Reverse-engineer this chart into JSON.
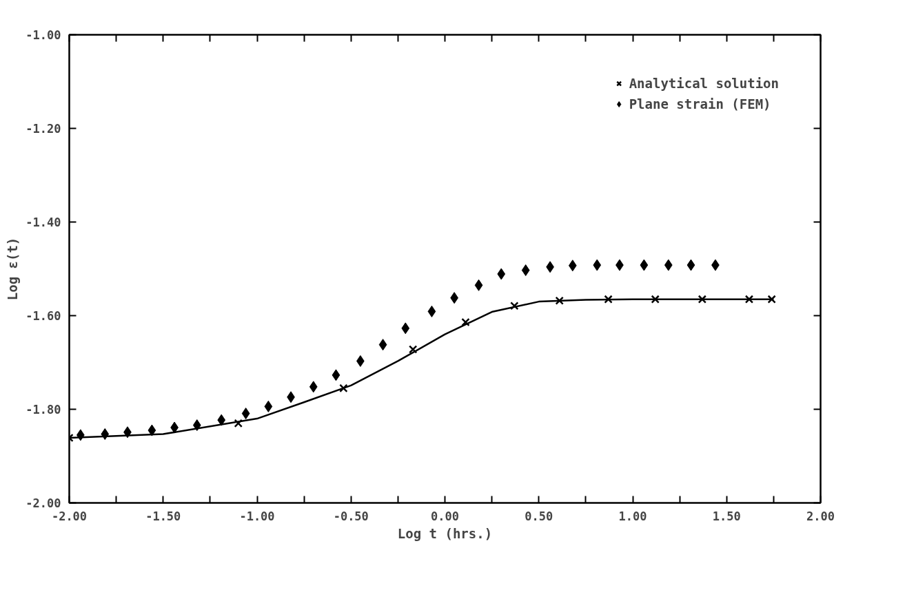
{
  "chart_data": {
    "type": "scatter",
    "xlabel": "Log t (hrs.)",
    "ylabel": "Log ε(t)",
    "xlim": [
      -2,
      2
    ],
    "ylim": [
      -2,
      -1
    ],
    "xticks": [
      {
        "value": -2,
        "label": "-2.00"
      },
      {
        "value": -1.75,
        "label": null
      },
      {
        "value": -1.5,
        "label": "-1.50"
      },
      {
        "value": -1.25,
        "label": null
      },
      {
        "value": -1,
        "label": "-1.00"
      },
      {
        "value": -0.75,
        "label": null
      },
      {
        "value": -0.5,
        "label": "-0.50"
      },
      {
        "value": -0.25,
        "label": null
      },
      {
        "value": 0,
        "label": "0.00"
      },
      {
        "value": 0.25,
        "label": null
      },
      {
        "value": 0.5,
        "label": "0.50"
      },
      {
        "value": 0.75,
        "label": null
      },
      {
        "value": 1,
        "label": "1.00"
      },
      {
        "value": 1.25,
        "label": null
      },
      {
        "value": 1.5,
        "label": "1.50"
      },
      {
        "value": 1.75,
        "label": null
      },
      {
        "value": 2,
        "label": "2.00"
      }
    ],
    "yticks": [
      {
        "value": -2,
        "label": "-2.00"
      },
      {
        "value": -1.8,
        "label": "-1.80"
      },
      {
        "value": -1.6,
        "label": "-1.60"
      },
      {
        "value": -1.4,
        "label": "-1.40"
      },
      {
        "value": -1.2,
        "label": "-1.20"
      },
      {
        "value": -1,
        "label": "-1.00"
      }
    ],
    "grid": false,
    "legend": "top right",
    "series": [
      {
        "name": "Analytical solution",
        "color": "#000000",
        "marker": "cross",
        "x": [
          -2.0,
          -1.1,
          -0.54,
          -0.17,
          0.11,
          0.37,
          0.61,
          0.87,
          1.12,
          1.37,
          1.62,
          1.74
        ],
        "values": [
          -1.861,
          -1.83,
          -1.755,
          -1.672,
          -1.614,
          -1.579,
          -1.568,
          -1.565,
          -1.565,
          -1.565,
          -1.565,
          -1.565
        ]
      },
      {
        "name": "Plane strain (FEM)",
        "color": "#000000",
        "marker": "diamond",
        "x": [
          -1.94,
          -1.81,
          -1.69,
          -1.56,
          -1.44,
          -1.32,
          -1.19,
          -1.06,
          -0.94,
          -0.82,
          -0.7,
          -0.58,
          -0.45,
          -0.33,
          -0.21,
          -0.07,
          0.05,
          0.18,
          0.3,
          0.43,
          0.56,
          0.68,
          0.81,
          0.93,
          1.06,
          1.19,
          1.31,
          1.44
        ],
        "values": [
          -1.855,
          -1.853,
          -1.849,
          -1.845,
          -1.839,
          -1.834,
          -1.823,
          -1.809,
          -1.794,
          -1.774,
          -1.752,
          -1.727,
          -1.697,
          -1.662,
          -1.627,
          -1.591,
          -1.562,
          -1.535,
          -1.511,
          -1.503,
          -1.496,
          -1.493,
          -1.492,
          -1.492,
          -1.492,
          -1.492,
          -1.492,
          -1.492
        ]
      },
      {
        "type": "line",
        "color": "#000000",
        "line_style": "solid",
        "x": [
          -2.0,
          -1.5,
          -1.0,
          -0.75,
          -0.5,
          -0.25,
          0.0,
          0.25,
          0.5,
          0.75,
          1.0,
          1.75
        ],
        "values": [
          -1.861,
          -1.853,
          -1.82,
          -1.785,
          -1.749,
          -1.697,
          -1.64,
          -1.592,
          -1.57,
          -1.566,
          -1.565,
          -1.565
        ]
      }
    ]
  }
}
